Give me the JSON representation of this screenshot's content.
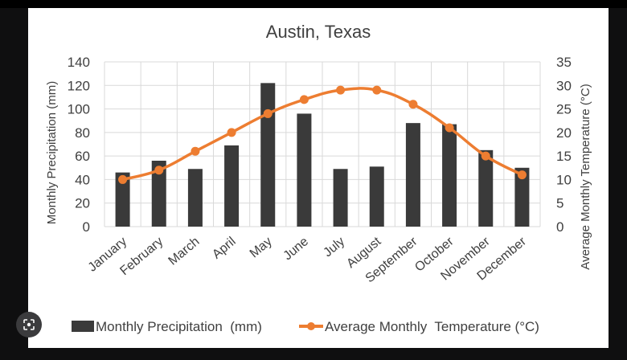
{
  "chart_data": {
    "type": "bar",
    "title": "Austin, Texas",
    "categories": [
      "January",
      "February",
      "March",
      "April",
      "May",
      "June",
      "July",
      "August",
      "September",
      "October",
      "November",
      "December"
    ],
    "ylabel": "Monthly Precipitation  (mm)",
    "y2label": "Average Monthly  Temperature (°C)",
    "ylim": [
      0,
      140
    ],
    "y2lim": [
      0,
      35
    ],
    "yticks": [
      "0",
      "20",
      "40",
      "60",
      "80",
      "100",
      "120",
      "140"
    ],
    "y2ticks": [
      "0",
      "5",
      "10",
      "15",
      "20",
      "25",
      "30",
      "35"
    ],
    "grid": true,
    "legend_position": "bottom",
    "series": [
      {
        "name": "Monthly Precipitation  (mm)",
        "type": "bar",
        "axis": "left",
        "color": "#3a3a3a",
        "values": [
          46,
          56,
          49,
          69,
          122,
          96,
          49,
          51,
          88,
          87,
          65,
          50
        ]
      },
      {
        "name": "Average Monthly  Temperature (°C)",
        "type": "line",
        "axis": "right",
        "color": "#ED7D31",
        "values": [
          10,
          12,
          16,
          20,
          24,
          27,
          29,
          29,
          26,
          21,
          15,
          11
        ]
      }
    ]
  }
}
